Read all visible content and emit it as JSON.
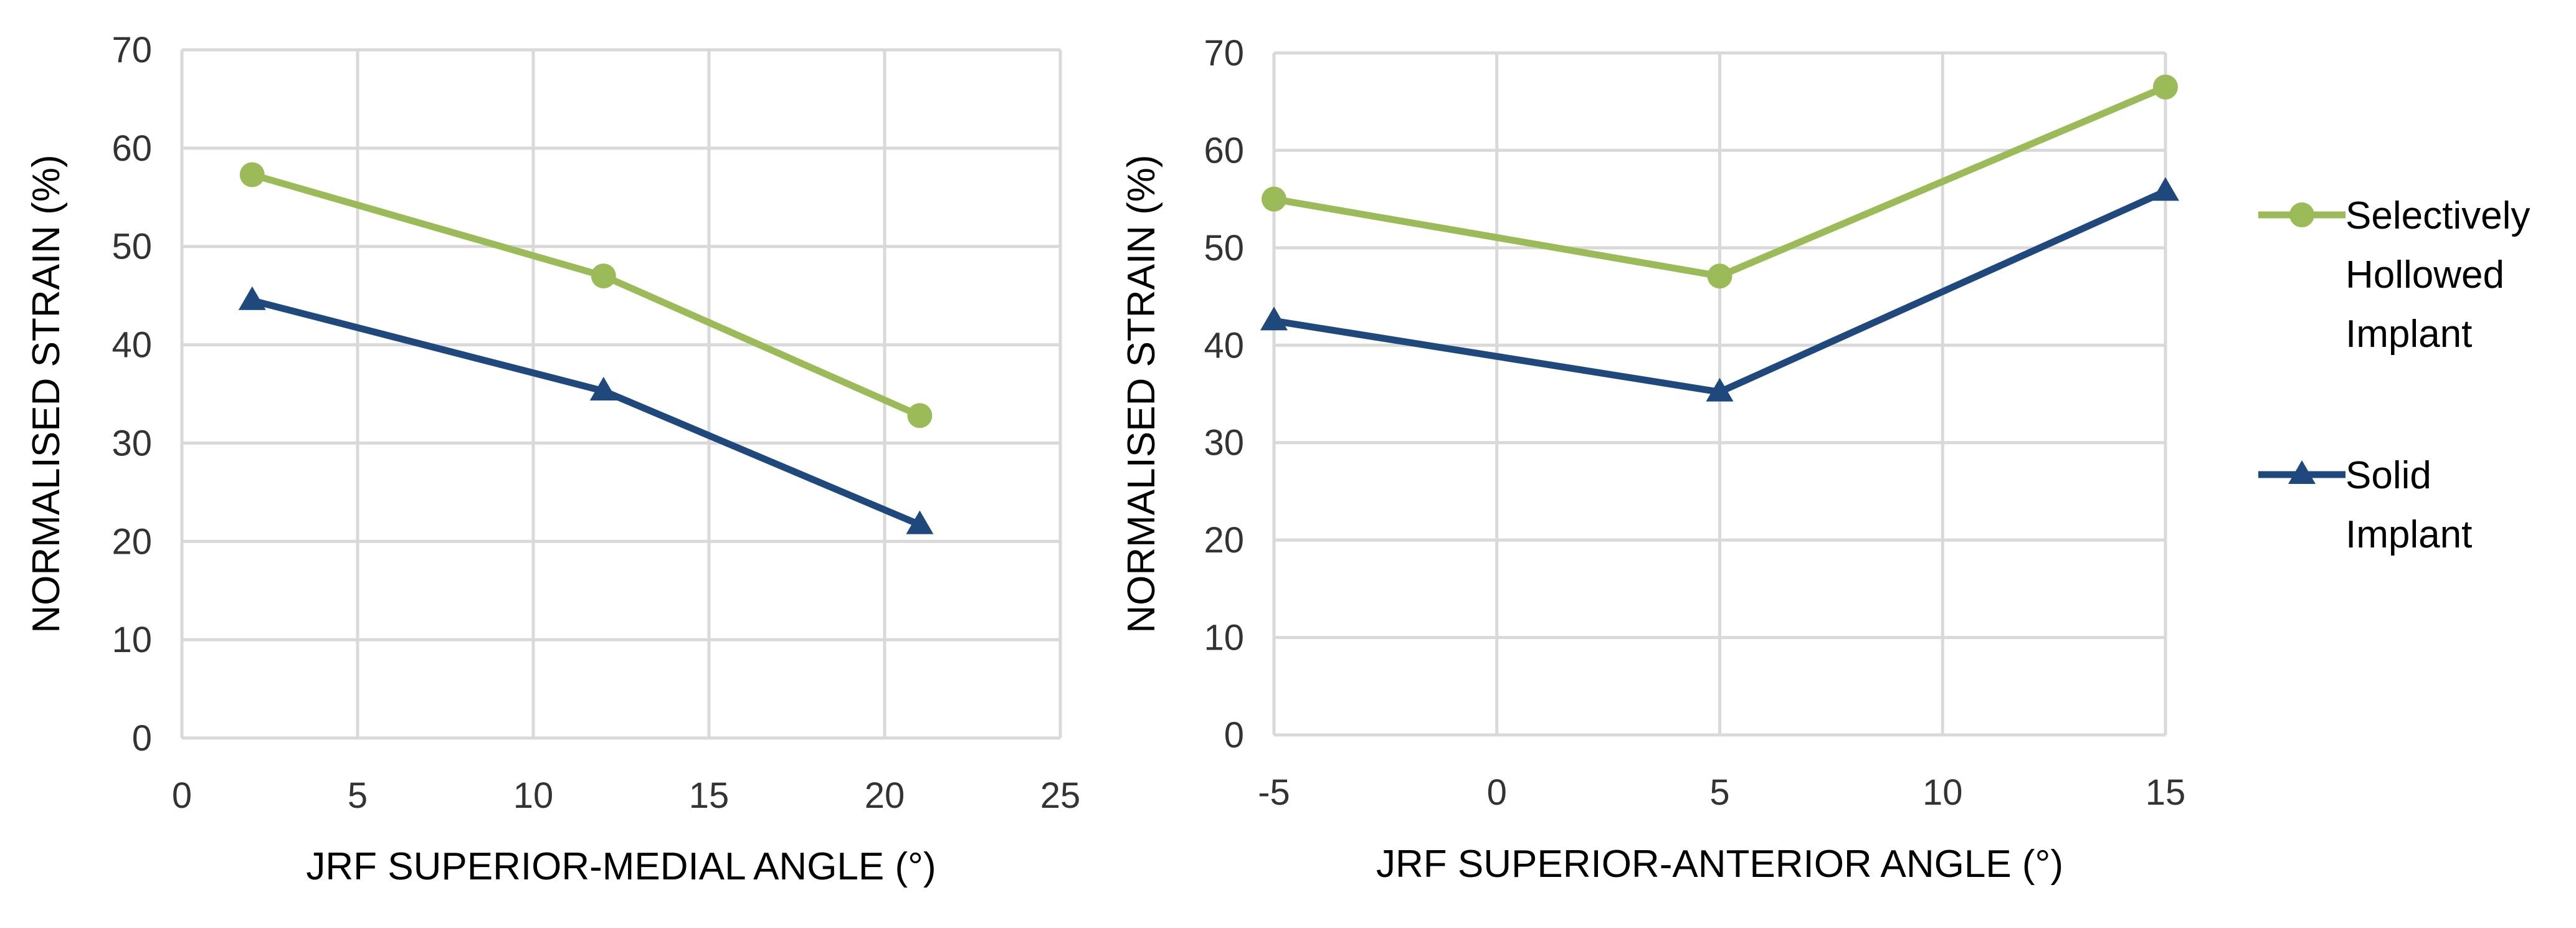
{
  "colors": {
    "hollowed": "#9bbb59",
    "solid": "#1f497d",
    "grid": "#d9d9d9"
  },
  "legend": {
    "hollowed_lines": [
      "Selectively",
      "Hollowed",
      "Implant"
    ],
    "solid_lines": [
      "Solid",
      "Implant"
    ]
  },
  "chart_data": [
    {
      "type": "line",
      "xlabel": "JRF SUPERIOR-MEDIAL ANGLE (°)",
      "ylabel": "NORMALISED STRAIN (%)",
      "xlim": [
        0,
        25
      ],
      "ylim": [
        0,
        70
      ],
      "xticks": [
        0,
        5,
        10,
        15,
        20,
        25
      ],
      "xtick_labels": [
        "0",
        "5",
        "10",
        "15",
        "20",
        "25"
      ],
      "yticks": [
        0,
        10,
        20,
        30,
        40,
        50,
        60,
        70
      ],
      "ytick_labels": [
        "0",
        "10",
        "20",
        "30",
        "40",
        "50",
        "60",
        "70"
      ],
      "grid": true,
      "series": [
        {
          "name": "Selectively Hollowed Implant",
          "color": "#9bbb59",
          "marker": "circle",
          "x": [
            2,
            12,
            21
          ],
          "y": [
            57.3,
            47.0,
            32.8
          ]
        },
        {
          "name": "Solid Implant",
          "color": "#1f497d",
          "marker": "triangle",
          "x": [
            2,
            12,
            21
          ],
          "y": [
            44.5,
            35.3,
            21.7
          ]
        }
      ]
    },
    {
      "type": "line",
      "xlabel": "JRF SUPERIOR-ANTERIOR ANGLE (°)",
      "ylabel": "NORMALISED STRAIN (%)",
      "xlim": [
        -5,
        15
      ],
      "ylim": [
        0,
        70
      ],
      "xticks": [
        -5,
        0,
        5,
        10,
        15
      ],
      "xtick_labels": [
        "-5",
        "0",
        "5",
        "10",
        "15"
      ],
      "yticks": [
        0,
        10,
        20,
        30,
        40,
        50,
        60,
        70
      ],
      "ytick_labels": [
        "0",
        "10",
        "20",
        "30",
        "40",
        "50",
        "60",
        "70"
      ],
      "grid": true,
      "series": [
        {
          "name": "Selectively Hollowed Implant",
          "color": "#9bbb59",
          "marker": "circle",
          "x": [
            -5,
            5,
            15
          ],
          "y": [
            55.0,
            47.1,
            66.5
          ]
        },
        {
          "name": "Solid Implant",
          "color": "#1f497d",
          "marker": "triangle",
          "x": [
            -5,
            5,
            15
          ],
          "y": [
            42.5,
            35.2,
            55.8
          ]
        }
      ]
    }
  ]
}
